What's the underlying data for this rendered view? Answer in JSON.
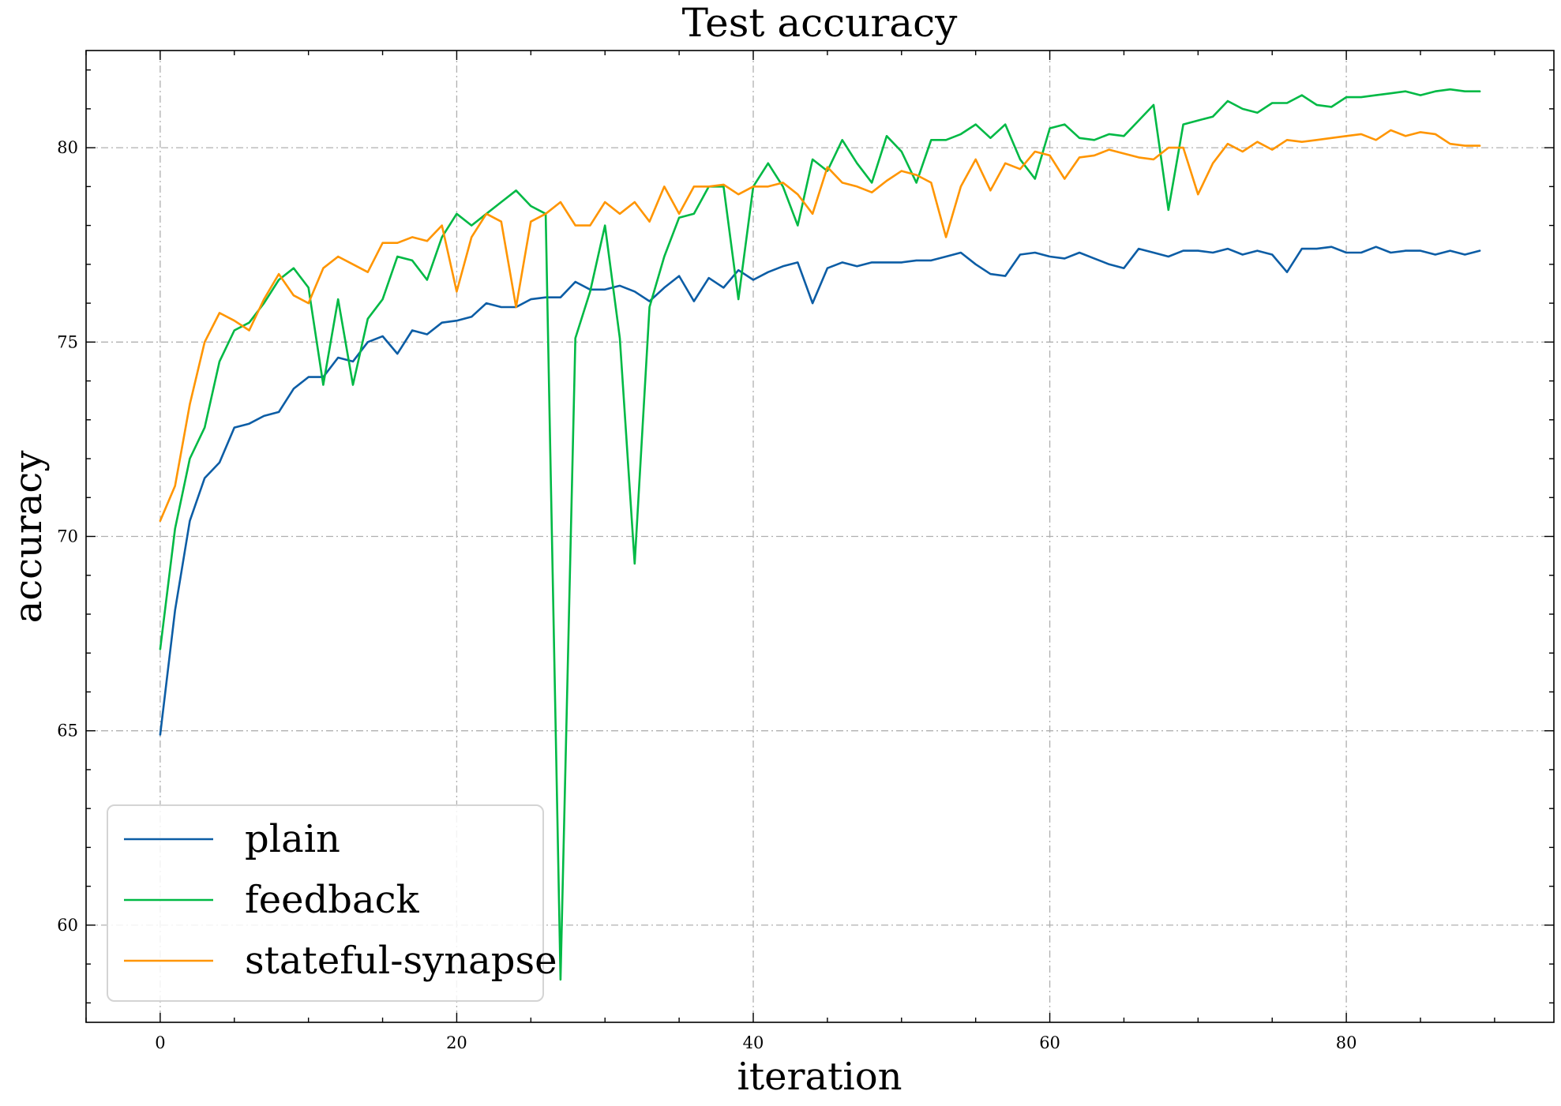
{
  "chart_data": {
    "type": "line",
    "title": "Test accuracy",
    "xlabel": "iteration",
    "ylabel": "accuracy",
    "xlim": [
      -5,
      94
    ],
    "ylim": [
      57.5,
      82.5
    ],
    "xticks": [
      0,
      20,
      40,
      60,
      80
    ],
    "yticks": [
      60,
      65,
      70,
      75,
      80
    ],
    "grid": true,
    "legend_position": "lower-left",
    "series": [
      {
        "name": "plain",
        "color": "#0C5DA5",
        "values": [
          64.9,
          68.1,
          70.4,
          71.5,
          71.9,
          72.8,
          72.9,
          73.1,
          73.2,
          73.8,
          74.1,
          74.1,
          74.6,
          74.5,
          75.0,
          75.15,
          74.7,
          75.3,
          75.2,
          75.5,
          75.55,
          75.65,
          76.0,
          75.9,
          75.9,
          76.1,
          76.15,
          76.15,
          76.55,
          76.35,
          76.35,
          76.45,
          76.3,
          76.05,
          76.4,
          76.7,
          76.05,
          76.65,
          76.4,
          76.85,
          76.6,
          76.8,
          76.95,
          77.05,
          76.0,
          76.9,
          77.05,
          76.95,
          77.05,
          77.05,
          77.05,
          77.1,
          77.1,
          77.2,
          77.3,
          77.0,
          76.75,
          76.7,
          77.25,
          77.3,
          77.2,
          77.15,
          77.3,
          77.15,
          77.0,
          76.9,
          77.4,
          77.3,
          77.2,
          77.35,
          77.35,
          77.3,
          77.4,
          77.25,
          77.35,
          77.25,
          76.8,
          77.4,
          77.4,
          77.45,
          77.3,
          77.3,
          77.45,
          77.3,
          77.35,
          77.35,
          77.25,
          77.35,
          77.25,
          77.35
        ]
      },
      {
        "name": "feedback",
        "color": "#00B945",
        "values": [
          67.1,
          70.2,
          72.0,
          72.8,
          74.5,
          75.3,
          75.5,
          76.0,
          76.6,
          76.9,
          76.4,
          73.9,
          76.1,
          73.9,
          75.6,
          76.1,
          77.2,
          77.1,
          76.6,
          77.7,
          78.3,
          78.0,
          78.3,
          78.6,
          78.9,
          78.5,
          78.3,
          58.6,
          75.1,
          76.3,
          78.0,
          75.1,
          69.3,
          75.9,
          77.2,
          78.2,
          78.3,
          79.0,
          79.0,
          76.1,
          79.0,
          79.6,
          79.0,
          78.0,
          79.7,
          79.4,
          80.2,
          79.6,
          79.1,
          80.3,
          79.9,
          79.1,
          80.2,
          80.2,
          80.35,
          80.6,
          80.25,
          80.6,
          79.7,
          79.2,
          80.5,
          80.6,
          80.25,
          80.2,
          80.35,
          80.3,
          80.7,
          81.1,
          78.4,
          80.6,
          80.7,
          80.8,
          81.2,
          81.0,
          80.9,
          81.15,
          81.15,
          81.35,
          81.1,
          81.05,
          81.3,
          81.3,
          81.35,
          81.4,
          81.45,
          81.35,
          81.45,
          81.5,
          81.45,
          81.45
        ]
      },
      {
        "name": "stateful-synapse",
        "color": "#FF9500",
        "values": [
          70.4,
          71.3,
          73.4,
          75.0,
          75.75,
          75.55,
          75.3,
          76.1,
          76.75,
          76.2,
          76.0,
          76.9,
          77.2,
          77.0,
          76.8,
          77.55,
          77.55,
          77.7,
          77.6,
          78.0,
          76.3,
          77.7,
          78.3,
          78.1,
          75.9,
          78.1,
          78.3,
          78.6,
          78.0,
          78.0,
          78.6,
          78.3,
          78.6,
          78.1,
          79.0,
          78.3,
          79.0,
          79.0,
          79.05,
          78.8,
          79.0,
          79.0,
          79.1,
          78.8,
          78.3,
          79.5,
          79.1,
          79.0,
          78.85,
          79.15,
          79.4,
          79.3,
          79.1,
          77.7,
          79.0,
          79.7,
          78.9,
          79.6,
          79.45,
          79.9,
          79.8,
          79.2,
          79.75,
          79.8,
          79.95,
          79.85,
          79.75,
          79.7,
          80.0,
          80.0,
          78.8,
          79.6,
          80.1,
          79.9,
          80.15,
          79.95,
          80.2,
          80.15,
          80.2,
          80.25,
          80.3,
          80.35,
          80.2,
          80.45,
          80.3,
          80.4,
          80.35,
          80.1,
          80.05,
          80.05
        ]
      }
    ]
  }
}
